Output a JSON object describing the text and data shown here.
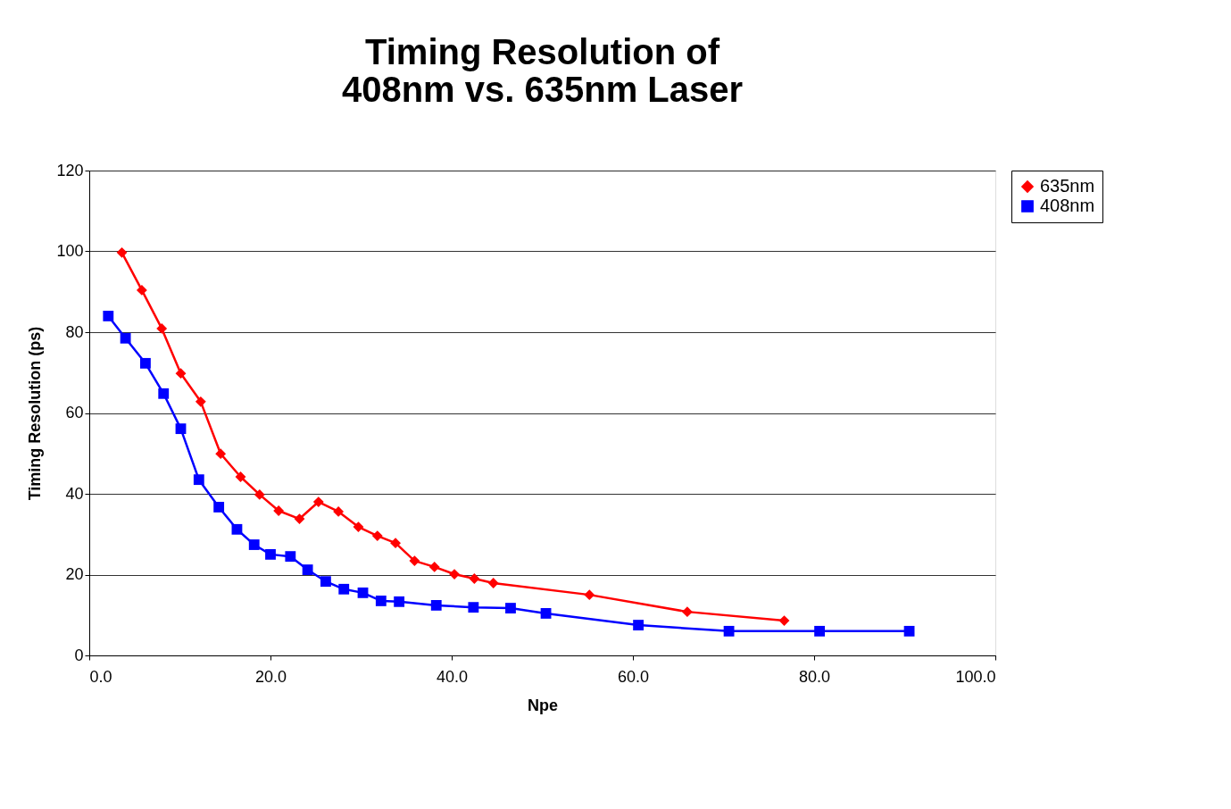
{
  "chart_data": {
    "type": "line",
    "title": "Timing Resolution of\n408nm vs. 635nm Laser",
    "xlabel": "Npe",
    "ylabel": "Timing Resolution (ps)",
    "xlim": [
      0,
      100
    ],
    "xticks": [
      {
        "value": 0,
        "label": "0.0"
      },
      {
        "value": 20,
        "label": "20.0"
      },
      {
        "value": 40,
        "label": "40.0"
      },
      {
        "value": 60,
        "label": "60.0"
      },
      {
        "value": 80,
        "label": "80.0"
      },
      {
        "value": 100,
        "label": "100.0"
      }
    ],
    "ylim": [
      0,
      120
    ],
    "yticks": [
      0,
      20,
      40,
      60,
      80,
      100,
      120
    ],
    "grid": "y",
    "legend": "right",
    "series": [
      {
        "name": "635nm",
        "color": "#ff0000",
        "marker": "diamond",
        "x": [
          3.6,
          5.8,
          8.0,
          10.1,
          12.3,
          14.5,
          16.7,
          18.8,
          20.9,
          23.2,
          25.3,
          27.5,
          29.7,
          31.8,
          33.8,
          35.9,
          38.1,
          40.3,
          42.5,
          44.6,
          55.2,
          66.0,
          76.7
        ],
        "values": [
          99.7,
          90.4,
          80.9,
          69.8,
          62.8,
          49.9,
          44.2,
          39.8,
          35.8,
          33.8,
          38.0,
          35.6,
          31.8,
          29.6,
          27.8,
          23.4,
          21.9,
          20.1,
          19.0,
          17.9,
          15.0,
          10.8,
          8.6
        ]
      },
      {
        "name": "408nm",
        "color": "#0000ff",
        "marker": "square",
        "x": [
          2.1,
          4.0,
          6.2,
          8.2,
          10.1,
          12.1,
          14.3,
          16.3,
          18.2,
          20.0,
          22.2,
          24.1,
          26.1,
          28.1,
          30.2,
          32.2,
          34.2,
          38.3,
          42.4,
          46.5,
          50.4,
          60.6,
          70.6,
          80.6,
          90.5
        ],
        "values": [
          84.0,
          78.5,
          72.3,
          64.8,
          56.1,
          43.5,
          36.7,
          31.2,
          27.4,
          25.0,
          24.5,
          21.2,
          18.3,
          16.4,
          15.5,
          13.5,
          13.3,
          12.4,
          11.9,
          11.7,
          10.4,
          7.5,
          6.0,
          6.0,
          6.0
        ]
      }
    ]
  }
}
